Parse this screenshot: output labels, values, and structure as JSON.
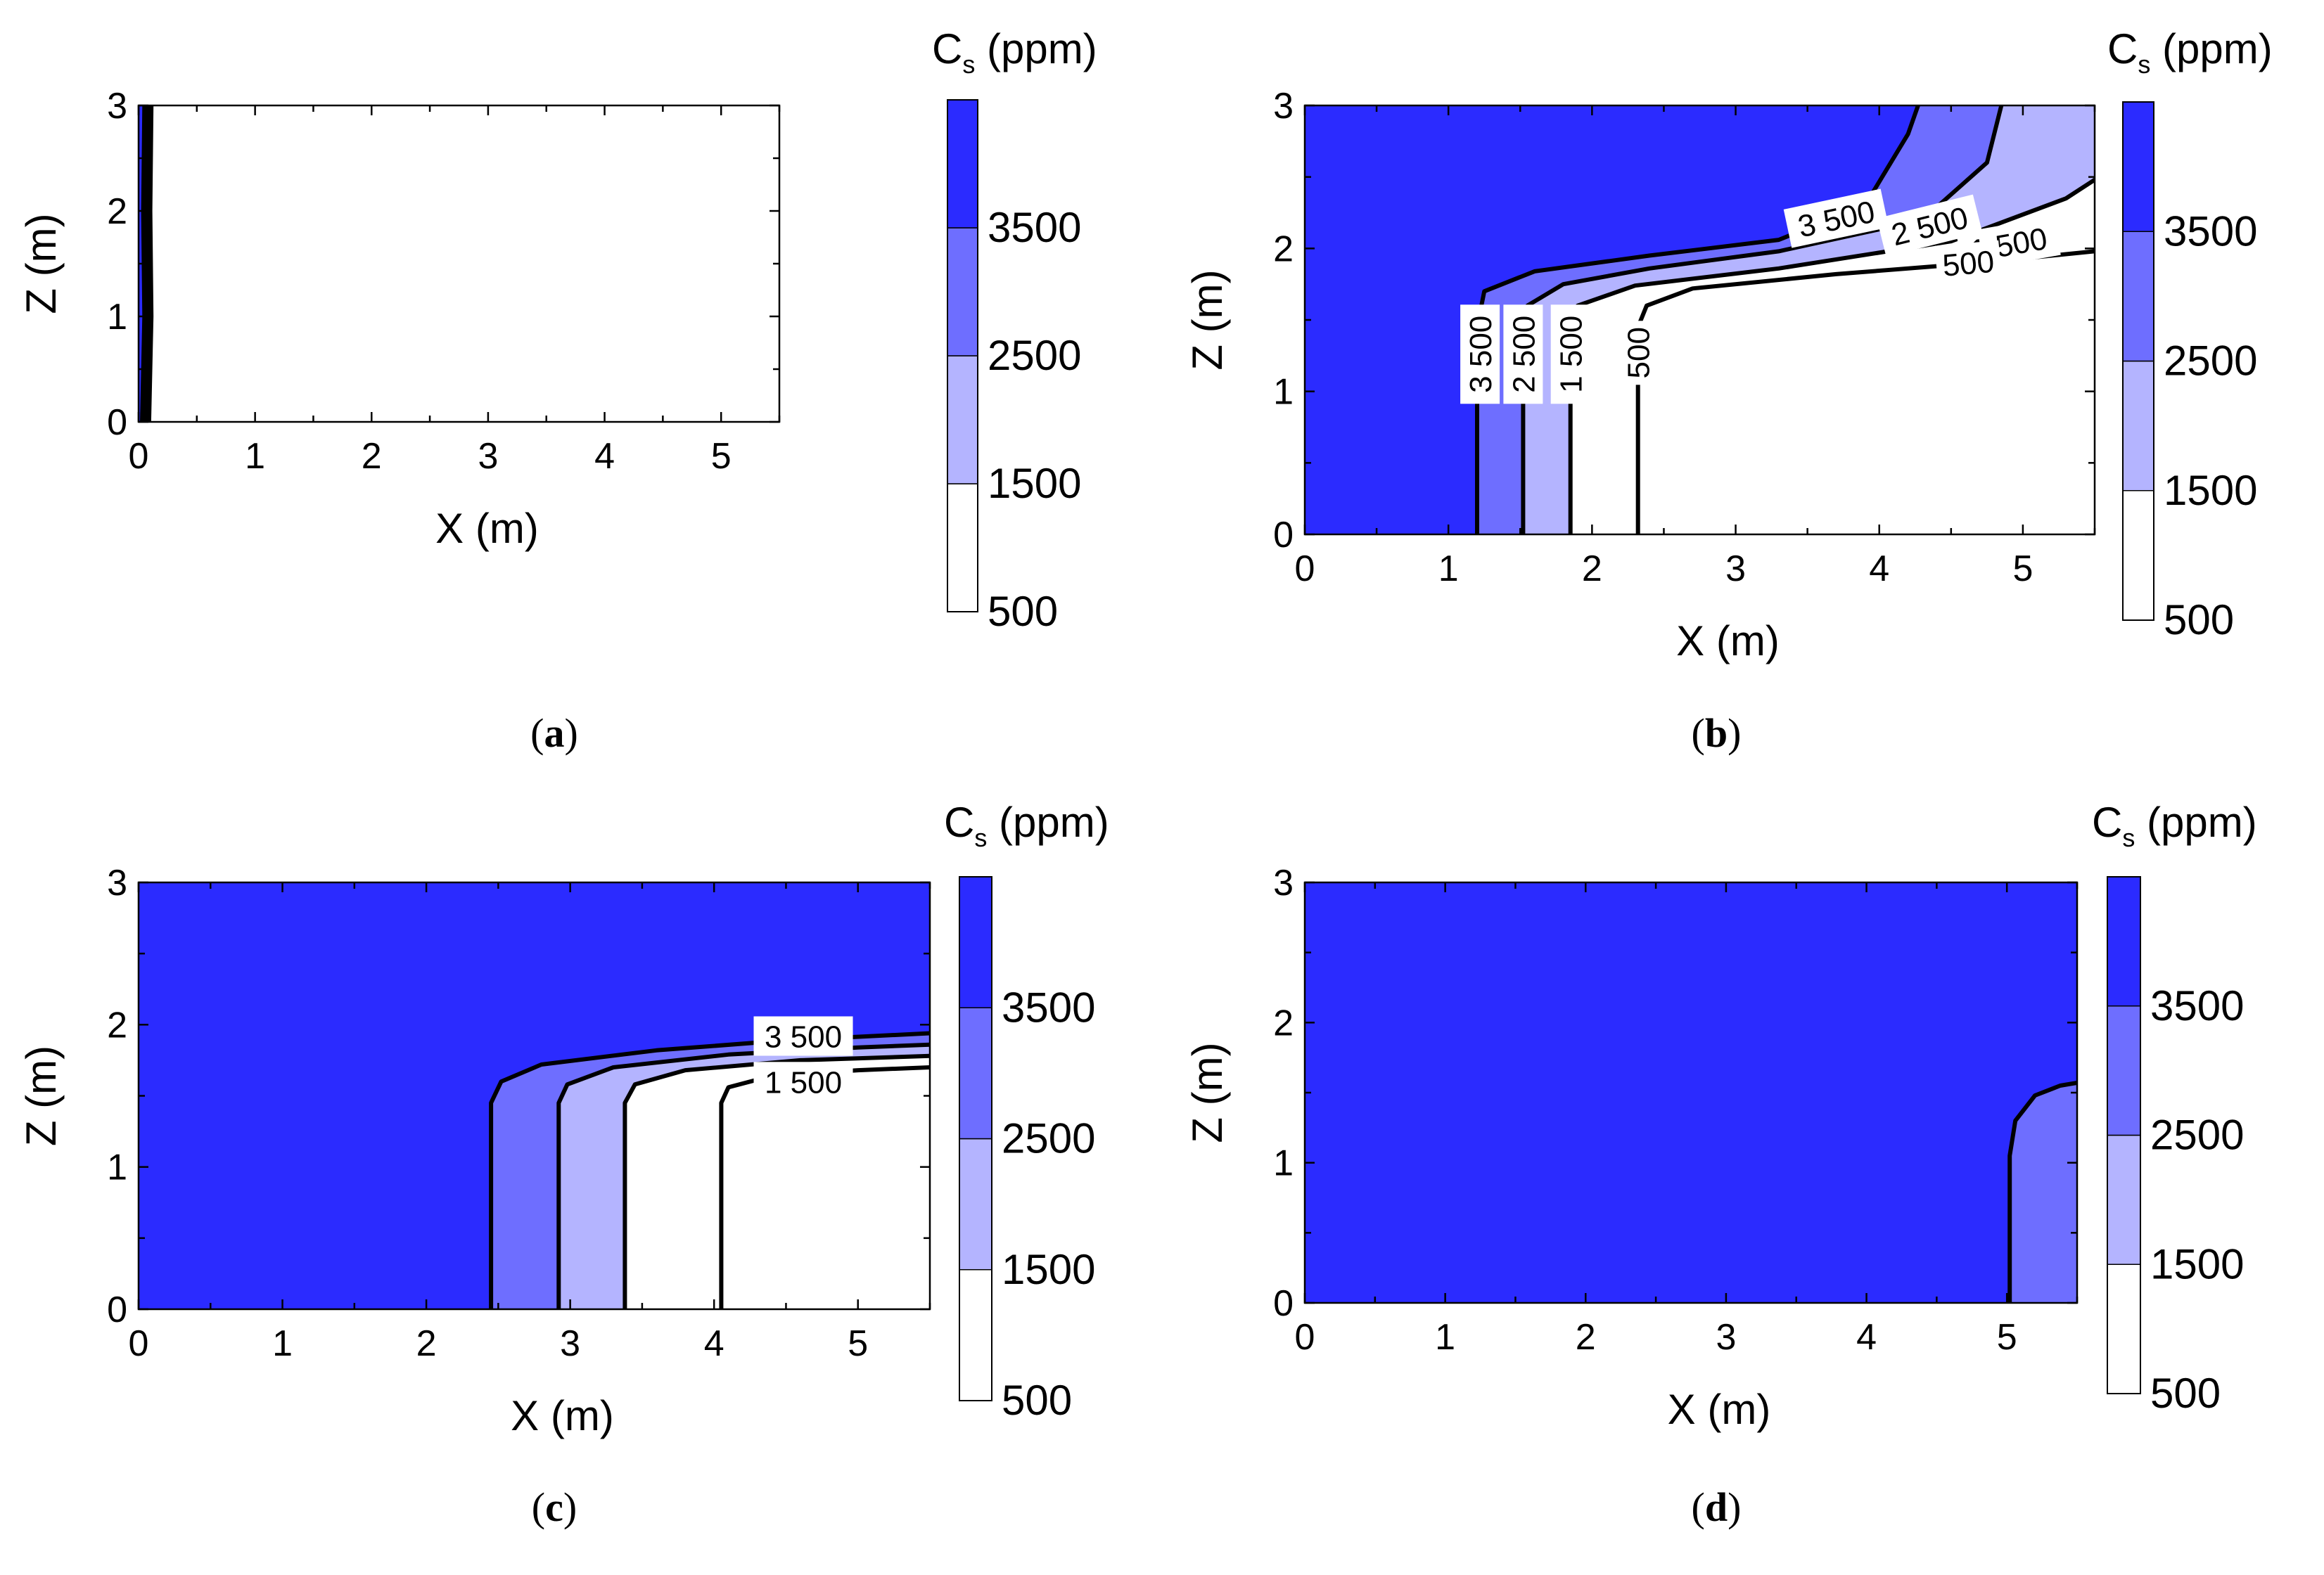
{
  "chart_data": [
    {
      "type": "contour",
      "panel_label": "a",
      "xlabel": "X (m)",
      "ylabel": "Z (m)",
      "xlim": [
        0,
        5.5
      ],
      "ylim": [
        0,
        3
      ],
      "xticks": [
        0,
        1,
        2,
        3,
        4,
        5
      ],
      "yticks": [
        0,
        1,
        2,
        3
      ],
      "colorbar": {
        "title_main": "C",
        "title_sub": "s",
        "title_unit": " (ppm)",
        "levels": [
          500,
          1500,
          2500,
          3500
        ],
        "tick_labels": [
          "500",
          "1500",
          "2500",
          "3500"
        ],
        "colors": [
          "#ffffff",
          "#b4b4ff",
          "#6e6eff",
          "#2b2bff"
        ]
      },
      "fill_polygons": [
        {
          "level": 3500,
          "points": [
            [
              0,
              0
            ],
            [
              0.05,
              0
            ],
            [
              0.05,
              3
            ],
            [
              0,
              3
            ]
          ]
        }
      ],
      "contours": [
        {
          "level": 3500,
          "points": [
            [
              0.03,
              0
            ],
            [
              0.05,
              1
            ],
            [
              0.04,
              2
            ],
            [
              0.05,
              3
            ]
          ]
        },
        {
          "level": 2500,
          "points": [
            [
              0.05,
              0
            ],
            [
              0.07,
              1
            ],
            [
              0.06,
              2
            ],
            [
              0.07,
              3
            ]
          ]
        },
        {
          "level": 1500,
          "points": [
            [
              0.07,
              0
            ],
            [
              0.09,
              1
            ],
            [
              0.08,
              2
            ],
            [
              0.09,
              3
            ]
          ]
        },
        {
          "level": 500,
          "points": [
            [
              0.09,
              0
            ],
            [
              0.11,
              1
            ],
            [
              0.1,
              2
            ],
            [
              0.11,
              3
            ]
          ]
        }
      ],
      "contour_labels": []
    },
    {
      "type": "contour",
      "panel_label": "b",
      "xlabel": "X (m)",
      "ylabel": "Z (m)",
      "xlim": [
        0,
        5.5
      ],
      "ylim": [
        0,
        3
      ],
      "xticks": [
        0,
        1,
        2,
        3,
        4,
        5
      ],
      "yticks": [
        0,
        1,
        2,
        3
      ],
      "colorbar": {
        "title_main": "C",
        "title_sub": "s",
        "title_unit": " (ppm)",
        "levels": [
          500,
          1500,
          2500,
          3500
        ],
        "tick_labels": [
          "500",
          "1500",
          "2500",
          "3500"
        ],
        "colors": [
          "#ffffff",
          "#b4b4ff",
          "#6e6eff",
          "#2b2bff"
        ]
      },
      "fill_polygons": [
        {
          "level": 3500,
          "points": [
            [
              0,
              0
            ],
            [
              5.5,
              0
            ],
            [
              5.5,
              3
            ],
            [
              0,
              3
            ]
          ]
        },
        {
          "level": 2500,
          "points": [
            [
              1.2,
              0
            ],
            [
              1.2,
              1.45
            ],
            [
              1.25,
              1.7
            ],
            [
              1.6,
              1.84
            ],
            [
              2.4,
              1.95
            ],
            [
              3.3,
              2.06
            ],
            [
              3.9,
              2.3
            ],
            [
              4.2,
              2.8
            ],
            [
              4.27,
              3
            ],
            [
              5.5,
              3
            ],
            [
              5.5,
              0
            ]
          ]
        },
        {
          "level": 1500,
          "points": [
            [
              1.52,
              0
            ],
            [
              1.52,
              1.45
            ],
            [
              1.55,
              1.6
            ],
            [
              1.8,
              1.75
            ],
            [
              2.4,
              1.86
            ],
            [
              3.3,
              1.98
            ],
            [
              4.3,
              2.2
            ],
            [
              4.75,
              2.6
            ],
            [
              4.85,
              3
            ],
            [
              5.5,
              3
            ],
            [
              5.5,
              0
            ]
          ]
        },
        {
          "level": 500,
          "points": [
            [
              1.85,
              0
            ],
            [
              1.85,
              1.45
            ],
            [
              1.9,
              1.6
            ],
            [
              2.3,
              1.74
            ],
            [
              3.3,
              1.86
            ],
            [
              4.5,
              2.05
            ],
            [
              5.3,
              2.35
            ],
            [
              5.5,
              2.48
            ],
            [
              5.5,
              0
            ]
          ]
        },
        {
          "level": 0,
          "points": [
            [
              2.32,
              0
            ],
            [
              2.32,
              1.45
            ],
            [
              2.38,
              1.6
            ],
            [
              2.7,
              1.72
            ],
            [
              3.7,
              1.82
            ],
            [
              4.7,
              1.9
            ],
            [
              5.5,
              1.98
            ],
            [
              5.5,
              0
            ]
          ]
        }
      ],
      "contours": [
        {
          "level": 3500,
          "points": [
            [
              1.2,
              0
            ],
            [
              1.2,
              1.45
            ],
            [
              1.25,
              1.7
            ],
            [
              1.6,
              1.84
            ],
            [
              2.4,
              1.95
            ],
            [
              3.3,
              2.06
            ],
            [
              3.9,
              2.3
            ],
            [
              4.2,
              2.8
            ],
            [
              4.27,
              3
            ]
          ]
        },
        {
          "level": 2500,
          "points": [
            [
              1.52,
              0
            ],
            [
              1.52,
              1.45
            ],
            [
              1.55,
              1.6
            ],
            [
              1.8,
              1.75
            ],
            [
              2.4,
              1.86
            ],
            [
              3.3,
              1.98
            ],
            [
              4.3,
              2.2
            ],
            [
              4.75,
              2.6
            ],
            [
              4.85,
              3
            ]
          ]
        },
        {
          "level": 1500,
          "points": [
            [
              1.85,
              0
            ],
            [
              1.85,
              1.45
            ],
            [
              1.9,
              1.6
            ],
            [
              2.3,
              1.74
            ],
            [
              3.3,
              1.86
            ],
            [
              4.5,
              2.05
            ],
            [
              5.3,
              2.35
            ],
            [
              5.5,
              2.48
            ]
          ]
        },
        {
          "level": 500,
          "points": [
            [
              2.32,
              0
            ],
            [
              2.32,
              1.45
            ],
            [
              2.38,
              1.6
            ],
            [
              2.7,
              1.72
            ],
            [
              3.7,
              1.82
            ],
            [
              4.7,
              1.9
            ],
            [
              5.5,
              1.98
            ]
          ]
        }
      ],
      "contour_labels": [
        {
          "text": "3 500",
          "x": 1.22,
          "y": 1.26,
          "angle": -90
        },
        {
          "text": "2 500",
          "x": 1.52,
          "y": 1.26,
          "angle": -90
        },
        {
          "text": "1 500",
          "x": 1.85,
          "y": 1.26,
          "angle": -90
        },
        {
          "text": "500",
          "x": 2.32,
          "y": 1.27,
          "angle": -90
        },
        {
          "text": "3 500",
          "x": 3.7,
          "y": 2.21,
          "angle": -12
        },
        {
          "text": "2 500",
          "x": 4.35,
          "y": 2.16,
          "angle": -14
        },
        {
          "text": "1 500",
          "x": 4.9,
          "y": 2.03,
          "angle": -10
        },
        {
          "text": "500",
          "x": 4.62,
          "y": 1.9,
          "angle": -5
        }
      ]
    },
    {
      "type": "contour",
      "panel_label": "c",
      "xlabel": "X (m)",
      "ylabel": "Z (m)",
      "xlim": [
        0,
        5.5
      ],
      "ylim": [
        0,
        3
      ],
      "xticks": [
        0,
        1,
        2,
        3,
        4,
        5
      ],
      "yticks": [
        0,
        1,
        2,
        3
      ],
      "colorbar": {
        "title_main": "C",
        "title_sub": "s",
        "title_unit": " (ppm)",
        "levels": [
          500,
          1500,
          2500,
          3500
        ],
        "tick_labels": [
          "500",
          "1500",
          "2500",
          "3500"
        ],
        "colors": [
          "#ffffff",
          "#b4b4ff",
          "#6e6eff",
          "#2b2bff"
        ]
      },
      "fill_polygons": [
        {
          "level": 3500,
          "points": [
            [
              0,
              0
            ],
            [
              5.5,
              0
            ],
            [
              5.5,
              3
            ],
            [
              0,
              3
            ]
          ]
        },
        {
          "level": 2500,
          "points": [
            [
              2.45,
              0
            ],
            [
              2.45,
              1.45
            ],
            [
              2.52,
              1.6
            ],
            [
              2.8,
              1.72
            ],
            [
              3.6,
              1.82
            ],
            [
              4.5,
              1.89
            ],
            [
              5.5,
              1.94
            ],
            [
              5.5,
              0
            ]
          ]
        },
        {
          "level": 1500,
          "points": [
            [
              2.92,
              0
            ],
            [
              2.92,
              1.45
            ],
            [
              2.98,
              1.58
            ],
            [
              3.3,
              1.7
            ],
            [
              4.1,
              1.79
            ],
            [
              5.0,
              1.84
            ],
            [
              5.5,
              1.86
            ],
            [
              5.5,
              0
            ]
          ]
        },
        {
          "level": 500,
          "points": [
            [
              3.38,
              0
            ],
            [
              3.38,
              1.45
            ],
            [
              3.45,
              1.58
            ],
            [
              3.8,
              1.68
            ],
            [
              4.6,
              1.75
            ],
            [
              5.5,
              1.78
            ],
            [
              5.5,
              0
            ]
          ]
        },
        {
          "level": 0,
          "points": [
            [
              4.05,
              0
            ],
            [
              4.05,
              1.45
            ],
            [
              4.1,
              1.56
            ],
            [
              4.4,
              1.64
            ],
            [
              5.0,
              1.68
            ],
            [
              5.5,
              1.7
            ],
            [
              5.5,
              0
            ]
          ]
        }
      ],
      "contours": [
        {
          "level": 3500,
          "points": [
            [
              2.45,
              0
            ],
            [
              2.45,
              1.45
            ],
            [
              2.52,
              1.6
            ],
            [
              2.8,
              1.72
            ],
            [
              3.6,
              1.82
            ],
            [
              4.5,
              1.89
            ],
            [
              5.5,
              1.94
            ]
          ]
        },
        {
          "level": 2500,
          "points": [
            [
              2.92,
              0
            ],
            [
              2.92,
              1.45
            ],
            [
              2.98,
              1.58
            ],
            [
              3.3,
              1.7
            ],
            [
              4.1,
              1.79
            ],
            [
              5.0,
              1.84
            ],
            [
              5.5,
              1.86
            ]
          ]
        },
        {
          "level": 1500,
          "points": [
            [
              3.38,
              0
            ],
            [
              3.38,
              1.45
            ],
            [
              3.45,
              1.58
            ],
            [
              3.8,
              1.68
            ],
            [
              4.6,
              1.75
            ],
            [
              5.5,
              1.78
            ]
          ]
        },
        {
          "level": 500,
          "points": [
            [
              4.05,
              0
            ],
            [
              4.05,
              1.45
            ],
            [
              4.1,
              1.56
            ],
            [
              4.4,
              1.64
            ],
            [
              5.0,
              1.68
            ],
            [
              5.5,
              1.7
            ]
          ]
        }
      ],
      "contour_labels": [
        {
          "text": "3 500",
          "x": 4.62,
          "y": 1.92,
          "angle": 0
        },
        {
          "text": "1 500",
          "x": 4.62,
          "y": 1.6,
          "angle": 0
        }
      ]
    },
    {
      "type": "contour",
      "panel_label": "d",
      "xlabel": "X (m)",
      "ylabel": "Z (m)",
      "xlim": [
        0,
        5.5
      ],
      "ylim": [
        0,
        3
      ],
      "xticks": [
        0,
        1,
        2,
        3,
        4,
        5
      ],
      "yticks": [
        0,
        1,
        2,
        3
      ],
      "colorbar": {
        "title_main": "C",
        "title_sub": "s",
        "title_unit": " (ppm)",
        "levels": [
          500,
          1500,
          2500,
          3500
        ],
        "tick_labels": [
          "500",
          "1500",
          "2500",
          "3500"
        ],
        "colors": [
          "#ffffff",
          "#b4b4ff",
          "#6e6eff",
          "#2b2bff"
        ]
      },
      "fill_polygons": [
        {
          "level": 3500,
          "points": [
            [
              0,
              0
            ],
            [
              5.5,
              0
            ],
            [
              5.5,
              3
            ],
            [
              0,
              3
            ]
          ]
        },
        {
          "level": 2500,
          "points": [
            [
              5.02,
              0
            ],
            [
              5.02,
              1.05
            ],
            [
              5.06,
              1.3
            ],
            [
              5.2,
              1.48
            ],
            [
              5.38,
              1.55
            ],
            [
              5.5,
              1.57
            ],
            [
              5.5,
              0
            ]
          ]
        }
      ],
      "contours": [
        {
          "level": 3500,
          "points": [
            [
              5.02,
              0
            ],
            [
              5.02,
              1.05
            ],
            [
              5.06,
              1.3
            ],
            [
              5.2,
              1.48
            ],
            [
              5.38,
              1.55
            ],
            [
              5.5,
              1.57
            ]
          ]
        }
      ],
      "contour_labels": []
    }
  ]
}
